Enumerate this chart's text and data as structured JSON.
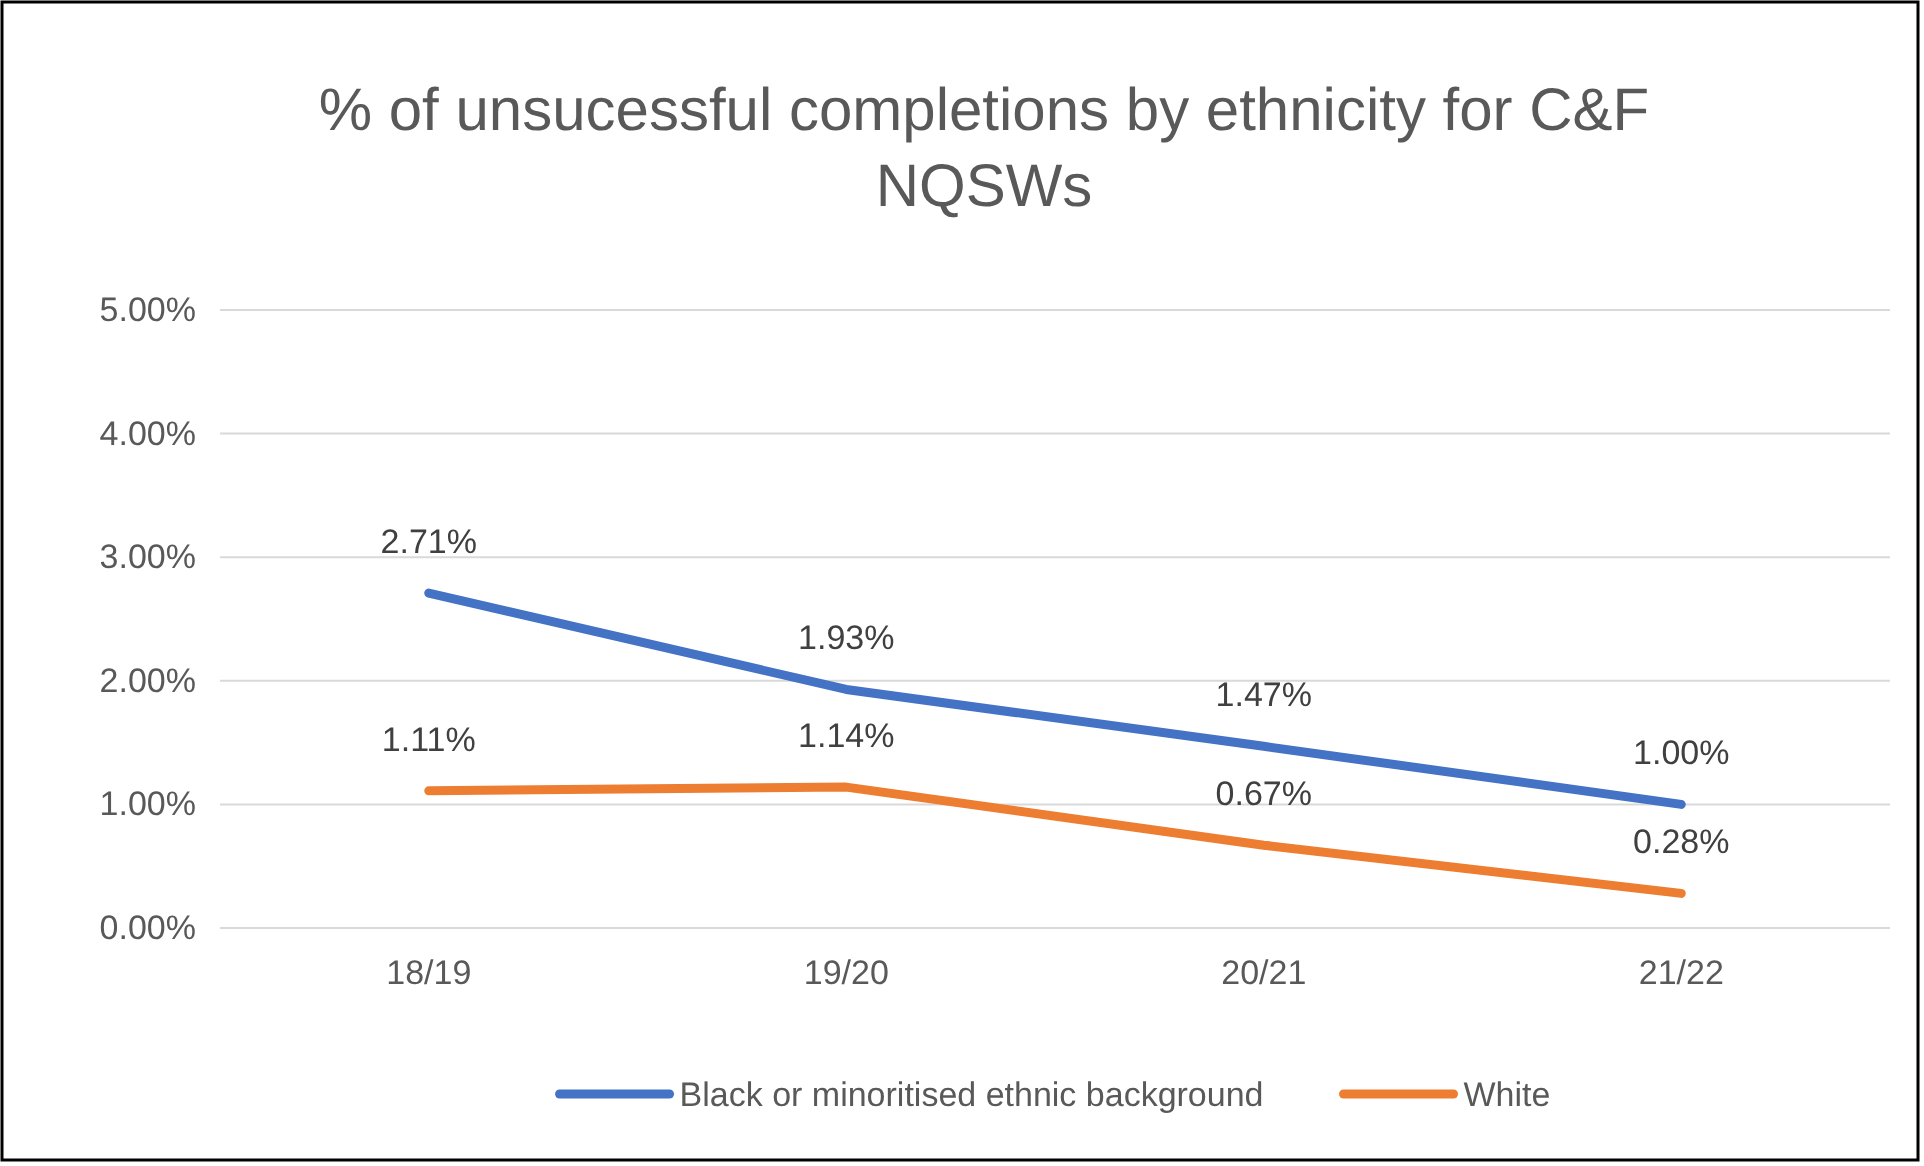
{
  "chart_data": {
    "type": "line",
    "title": "% of unsucessful completions by ethnicity for C&F NQSWs",
    "categories": [
      "18/19",
      "19/20",
      "20/21",
      "21/22"
    ],
    "series": [
      {
        "name": "Black or minoritised ethnic background",
        "color": "#4472c4",
        "values": [
          2.71,
          1.93,
          1.47,
          1.0
        ],
        "value_labels": [
          "2.71%",
          "1.93%",
          "1.47%",
          "1.00%"
        ]
      },
      {
        "name": "White",
        "color": "#ed7d31",
        "values": [
          1.11,
          1.14,
          0.67,
          0.28
        ],
        "value_labels": [
          "1.11%",
          "1.14%",
          "0.67%",
          "0.28%"
        ]
      }
    ],
    "ylim": [
      0,
      5
    ],
    "yticks": [
      {
        "value": 0,
        "label": "0.00%"
      },
      {
        "value": 1,
        "label": "1.00%"
      },
      {
        "value": 2,
        "label": "2.00%"
      },
      {
        "value": 3,
        "label": "3.00%"
      },
      {
        "value": 4,
        "label": "4.00%"
      },
      {
        "value": 5,
        "label": "5.00%"
      }
    ],
    "grid": "y",
    "legend": "bottom",
    "marker": "none",
    "line_style": "solid"
  }
}
